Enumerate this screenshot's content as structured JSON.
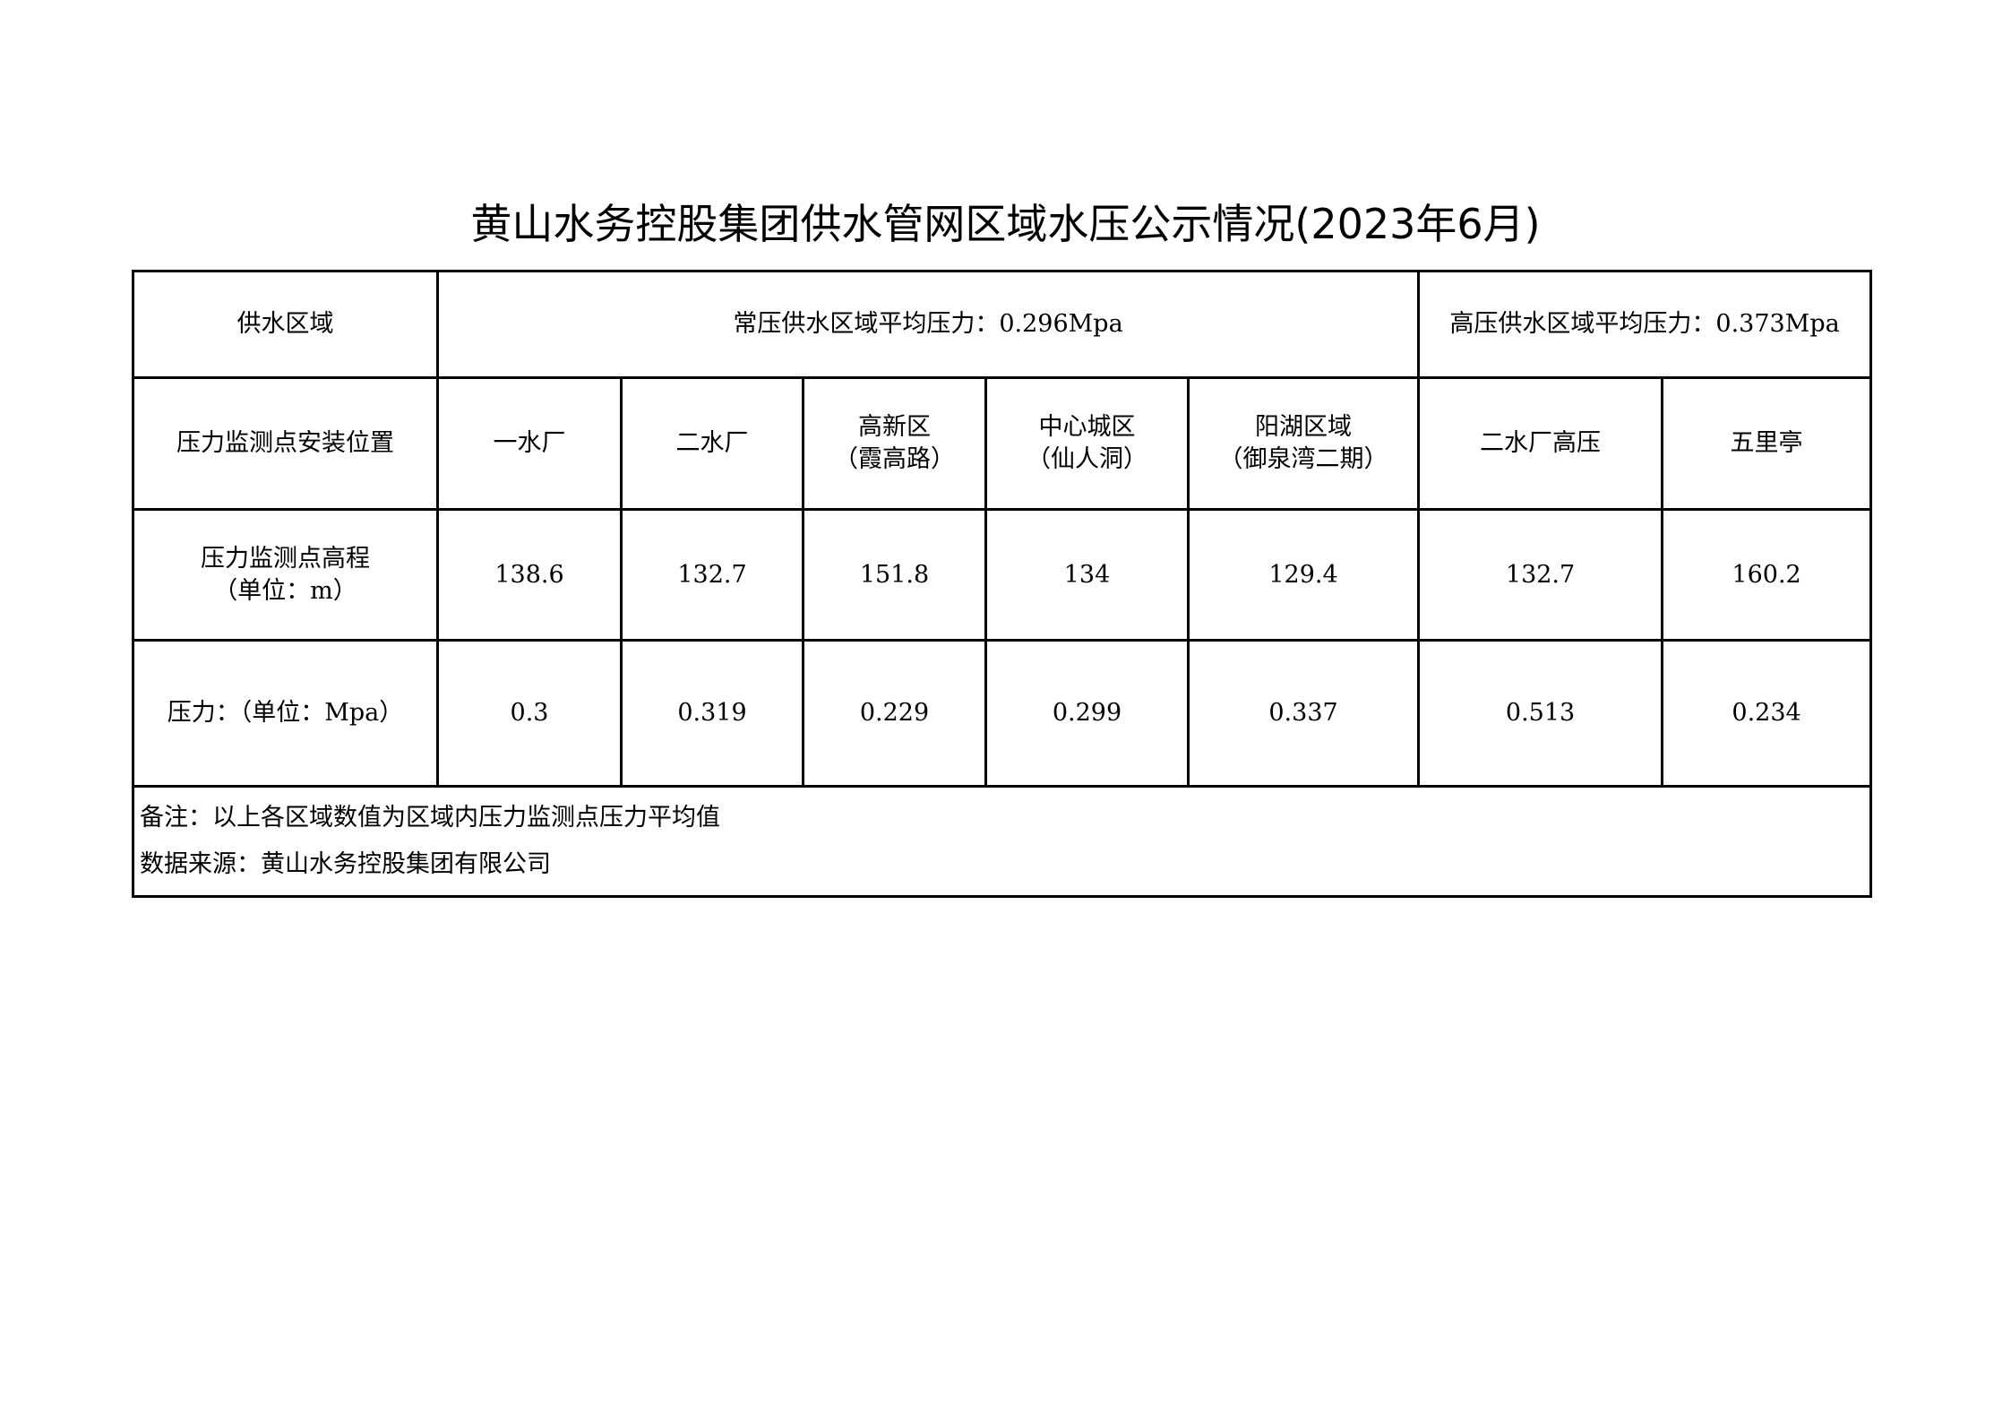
{
  "title": "黄山水务控股集团供水管网区域水压公示情况(2023年6月)",
  "header": {
    "region_label": "供水区域",
    "normal_avg": "常压供水区域平均压力：0.296Mpa",
    "high_avg": "高压供水区域平均压力：0.373Mpa"
  },
  "rows": {
    "location_label": "压力监测点安装位置",
    "elevation_label_1": "压力监测点高程",
    "elevation_label_2": "（单位：m）",
    "pressure_label": "压力：（单位：Mpa）"
  },
  "sites": [
    {
      "name1": "一水厂",
      "name2": "",
      "elevation": "138.6",
      "pressure": "0.3"
    },
    {
      "name1": "二水厂",
      "name2": "",
      "elevation": "132.7",
      "pressure": "0.319"
    },
    {
      "name1": "高新区",
      "name2": "（霞高路）",
      "elevation": "151.8",
      "pressure": "0.229"
    },
    {
      "name1": "中心城区",
      "name2": "（仙人洞）",
      "elevation": "134",
      "pressure": "0.299"
    },
    {
      "name1": "阳湖区域",
      "name2": "（御泉湾二期）",
      "elevation": "129.4",
      "pressure": "0.337"
    },
    {
      "name1": "二水厂高压",
      "name2": "",
      "elevation": "132.7",
      "pressure": "0.513"
    },
    {
      "name1": "五里亭",
      "name2": "",
      "elevation": "160.2",
      "pressure": "0.234"
    }
  ],
  "notes": {
    "remark": "备注：以上各区域数值为区域内压力监测点压力平均值",
    "source": "数据来源：黄山水务控股集团有限公司"
  }
}
